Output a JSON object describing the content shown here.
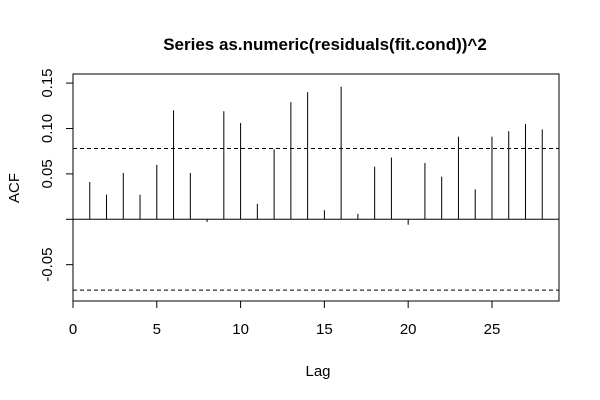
{
  "chart_data": {
    "type": "bar",
    "style": "acf-spikes",
    "title": "Series as.numeric(residuals(fit.cond))^2",
    "xlabel": "Lag",
    "ylabel": "ACF",
    "xlim": [
      0,
      29
    ],
    "ylim": [
      -0.09,
      0.16
    ],
    "x_ticks": [
      0,
      5,
      10,
      15,
      20,
      25
    ],
    "y_ticks": [
      -0.05,
      0.0,
      0.05,
      0.1,
      0.15
    ],
    "y_tick_labels": [
      "-0.05",
      "",
      "0.05",
      "0.10",
      "0.15"
    ],
    "lags": [
      1,
      2,
      3,
      4,
      5,
      6,
      7,
      8,
      9,
      10,
      11,
      12,
      13,
      14,
      15,
      16,
      17,
      18,
      19,
      20,
      21,
      22,
      23,
      24,
      25,
      26,
      27,
      28
    ],
    "values": [
      0.041,
      0.027,
      0.051,
      0.027,
      0.06,
      0.12,
      0.051,
      -0.003,
      0.119,
      0.106,
      0.017,
      0.077,
      0.129,
      0.14,
      0.01,
      0.146,
      0.006,
      0.058,
      0.068,
      -0.006,
      0.062,
      0.047,
      0.091,
      0.033,
      0.091,
      0.097,
      0.105,
      0.099
    ],
    "confidence_bound": 0.078,
    "zero_line": true,
    "grid": false,
    "legend": "none",
    "colors": {
      "spikes": "#000000",
      "bounds": "#000000",
      "axes": "#000000"
    }
  }
}
